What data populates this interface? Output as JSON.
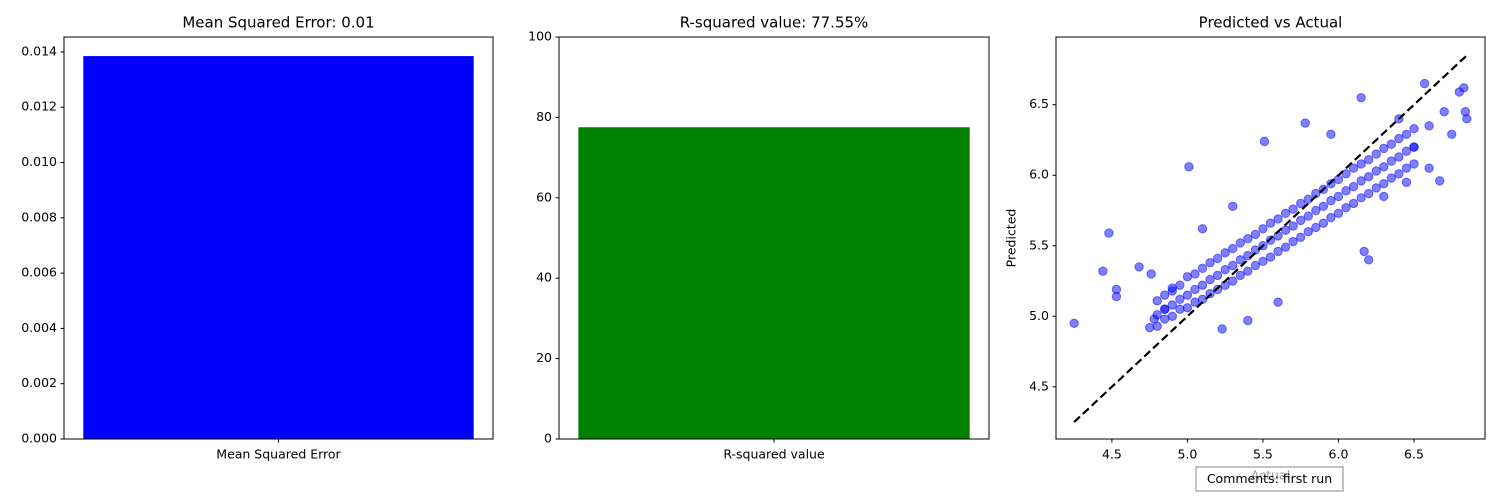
{
  "chart_data": [
    {
      "type": "bar",
      "title": "Mean Squared Error: 0.01",
      "categories": [
        "Mean Squared Error"
      ],
      "values": [
        0.01385
      ],
      "color": "#0000ff",
      "ylim": [
        0,
        0.01454
      ],
      "yticks": [
        {
          "value": 0,
          "label": "0.000"
        },
        {
          "value": 0.002,
          "label": "0.002"
        },
        {
          "value": 0.004,
          "label": "0.004"
        },
        {
          "value": 0.006,
          "label": "0.006"
        },
        {
          "value": 0.008,
          "label": "0.008"
        },
        {
          "value": 0.01,
          "label": "0.010"
        },
        {
          "value": 0.012,
          "label": "0.012"
        },
        {
          "value": 0.014,
          "label": "0.014"
        }
      ]
    },
    {
      "type": "bar",
      "title": "R-squared value: 77.55%",
      "categories": [
        "R-squared value"
      ],
      "values": [
        77.55
      ],
      "color": "#008000",
      "ylim": [
        0,
        100
      ],
      "yticks": [
        0,
        20,
        40,
        60,
        80,
        100
      ]
    },
    {
      "type": "scatter",
      "title": "Predicted vs Actual",
      "xlabel": "Actual",
      "ylabel": "Predicted",
      "color": "#0000ff",
      "annotation": "Comments: first run",
      "xlim": [
        4.13,
        6.97
      ],
      "ylim": [
        4.13,
        6.98
      ],
      "xticks": [
        {
          "value": 4.5,
          "label": "4.5"
        },
        {
          "value": 5,
          "label": "5.0"
        },
        {
          "value": 5.5,
          "label": "5.5"
        },
        {
          "value": 6,
          "label": "6.0"
        },
        {
          "value": 6.5,
          "label": "6.5"
        }
      ],
      "yticks": [
        {
          "value": 4.5,
          "label": "4.5"
        },
        {
          "value": 5,
          "label": "5.0"
        },
        {
          "value": 5.5,
          "label": "5.5"
        },
        {
          "value": 6,
          "label": "6.0"
        },
        {
          "value": 6.5,
          "label": "6.5"
        }
      ],
      "line": {
        "x": [
          4.25,
          6.85
        ],
        "y": [
          4.25,
          6.85
        ]
      },
      "x": [
        4.25,
        4.44,
        4.48,
        4.53,
        4.53,
        4.68,
        4.76,
        4.75,
        4.78,
        5.01,
        5.23,
        5.51,
        5.6,
        5.4,
        6.15,
        6.57,
        6.83,
        6.8,
        6.67,
        6.2,
        6.17,
        5.78,
        5.95,
        6.6,
        6.75,
        6.85,
        6.84,
        4.9,
        4.85,
        5.1,
        5.3,
        6.3,
        6.45,
        6.5,
        6.4,
        6.6,
        6.7,
        4.8,
        4.85,
        4.9,
        4.95,
        5.0,
        5.05,
        5.1,
        5.15,
        5.2,
        5.25,
        5.3,
        5.35,
        5.4,
        5.45,
        5.5,
        5.55,
        5.6,
        5.65,
        5.7,
        5.75,
        5.8,
        5.85,
        5.9,
        5.95,
        6.0,
        6.05,
        6.1,
        6.15,
        6.2,
        6.25,
        6.3,
        6.35,
        6.4,
        6.45,
        6.5,
        4.8,
        4.85,
        4.9,
        4.95,
        5.0,
        5.05,
        5.1,
        5.15,
        5.2,
        5.25,
        5.3,
        5.35,
        5.4,
        5.45,
        5.5,
        5.55,
        5.6,
        5.65,
        5.7,
        5.75,
        5.8,
        5.85,
        5.9,
        5.95,
        6.0,
        6.05,
        6.1,
        6.15,
        6.2,
        6.25,
        6.3,
        6.35,
        6.4,
        6.45,
        6.5,
        4.8,
        4.85,
        4.9,
        4.95,
        5.0,
        5.05,
        5.1,
        5.15,
        5.2,
        5.25,
        5.3,
        5.35,
        5.4,
        5.45,
        5.5,
        5.55,
        5.6,
        5.65,
        5.7,
        5.75,
        5.8,
        5.85,
        5.9,
        5.95,
        6.0,
        6.05,
        6.1,
        6.15,
        6.2,
        6.25,
        6.3,
        6.35,
        6.4,
        6.45,
        6.5
      ],
      "y": [
        4.95,
        5.32,
        5.59,
        5.19,
        5.14,
        5.35,
        5.3,
        4.92,
        4.98,
        6.06,
        4.91,
        6.24,
        5.1,
        4.97,
        6.55,
        6.65,
        6.62,
        6.59,
        5.96,
        5.4,
        5.46,
        6.37,
        6.29,
        6.05,
        6.29,
        6.4,
        6.45,
        5.18,
        5.05,
        5.62,
        5.78,
        5.85,
        5.95,
        6.2,
        6.4,
        6.35,
        6.45,
        5.11,
        5.15,
        5.2,
        5.22,
        5.28,
        5.3,
        5.34,
        5.38,
        5.41,
        5.45,
        5.48,
        5.52,
        5.55,
        5.58,
        5.62,
        5.66,
        5.69,
        5.73,
        5.76,
        5.8,
        5.83,
        5.87,
        5.9,
        5.94,
        5.97,
        6.01,
        6.05,
        6.08,
        6.11,
        6.15,
        6.19,
        6.22,
        6.26,
        6.29,
        6.33,
        4.93,
        4.98,
        5.0,
        5.05,
        5.06,
        5.1,
        5.12,
        5.16,
        5.19,
        5.22,
        5.25,
        5.29,
        5.32,
        5.36,
        5.39,
        5.42,
        5.46,
        5.49,
        5.53,
        5.56,
        5.6,
        5.63,
        5.66,
        5.7,
        5.73,
        5.77,
        5.8,
        5.84,
        5.87,
        5.91,
        5.94,
        5.98,
        6.01,
        6.05,
        6.08,
        5.01,
        5.05,
        5.08,
        5.12,
        5.15,
        5.19,
        5.22,
        5.26,
        5.29,
        5.33,
        5.36,
        5.4,
        5.43,
        5.47,
        5.5,
        5.54,
        5.57,
        5.61,
        5.64,
        5.68,
        5.71,
        5.75,
        5.78,
        5.82,
        5.85,
        5.89,
        5.92,
        5.96,
        5.99,
        6.03,
        6.06,
        6.1,
        6.13,
        6.17,
        6.2
      ]
    }
  ]
}
